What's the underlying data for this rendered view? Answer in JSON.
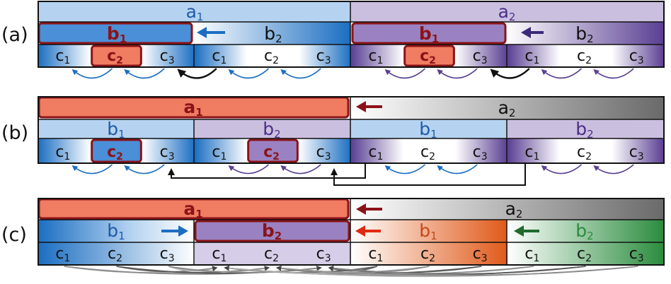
{
  "panels": [
    {
      "label": "(a)",
      "a1": "a",
      "a1_sub": "1",
      "a2": "a",
      "a2_sub": "2",
      "b_left": [
        {
          "t": "b",
          "s": "1"
        },
        {
          "t": "b",
          "s": "2"
        }
      ],
      "b_right": [
        {
          "t": "b",
          "s": "1"
        },
        {
          "t": "b",
          "s": "2"
        }
      ],
      "c": [
        "c",
        "c",
        "c",
        "c",
        "c",
        "c",
        "c",
        "c",
        "c",
        "c",
        "c",
        "c"
      ],
      "c_sub": [
        "1",
        "2",
        "3",
        "1",
        "2",
        "3",
        "1",
        "2",
        "3",
        "1",
        "2",
        "3"
      ]
    },
    {
      "label": "(b)",
      "a1": "a",
      "a1_sub": "1",
      "a2": "a",
      "a2_sub": "2",
      "b": [
        {
          "t": "b",
          "s": "1"
        },
        {
          "t": "b",
          "s": "2"
        },
        {
          "t": "b",
          "s": "1"
        },
        {
          "t": "b",
          "s": "2"
        }
      ],
      "c": [
        "c",
        "c",
        "c",
        "c",
        "c",
        "c",
        "c",
        "c",
        "c",
        "c",
        "c",
        "c"
      ],
      "c_sub": [
        "1",
        "2",
        "3",
        "1",
        "2",
        "3",
        "1",
        "2",
        "3",
        "1",
        "2",
        "3"
      ]
    },
    {
      "label": "(c)",
      "a1": "a",
      "a1_sub": "1",
      "a2": "a",
      "a2_sub": "2",
      "b": [
        {
          "t": "b",
          "s": "1"
        },
        {
          "t": "b",
          "s": "2"
        },
        {
          "t": "b",
          "s": "1"
        },
        {
          "t": "b",
          "s": "2"
        }
      ],
      "c": [
        "c",
        "c",
        "c",
        "c",
        "c",
        "c",
        "c",
        "c",
        "c",
        "c",
        "c",
        "c"
      ],
      "c_sub": [
        "1",
        "2",
        "3",
        "1",
        "2",
        "3",
        "1",
        "2",
        "3",
        "1",
        "2",
        "3"
      ]
    }
  ],
  "colors": {
    "blue_light": "#b5d3f1",
    "blue_dark": "#1b6ec2",
    "blue_text": "#1f5aa8",
    "purple_light": "#cbbfe0",
    "purple_dark": "#5a3f93",
    "purple_text": "#4a2f86",
    "red_fill": "#f07c62",
    "red_border": "#8b1318",
    "red_text": "#8b1318",
    "orange_dark": "#e05a1a",
    "green_dark": "#2b8c3e",
    "gray_dark": "#6a6a6a"
  }
}
